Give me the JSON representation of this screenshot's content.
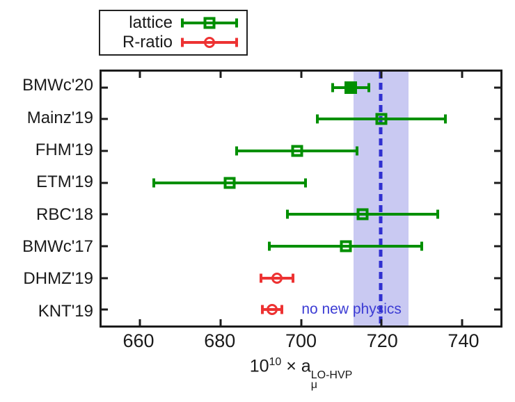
{
  "figure": {
    "background": "#ffffff"
  },
  "chart_data": {
    "type": "scatter",
    "subtype": "horizontal-errorbar-comparison",
    "title": "",
    "xlabel": "10^10 × a_mu^LO-HVP",
    "xlabel_parts": {
      "coeff": "10",
      "exponent": "10",
      "times": " × a",
      "subscript": "μ",
      "superscript": "LO-HVP"
    },
    "xlim": [
      650.4,
      749.6
    ],
    "x_ticks": [
      "660",
      "680",
      "700",
      "720",
      "740"
    ],
    "grid": false,
    "legend_position": "top-left-outside",
    "legend": {
      "items": [
        {
          "label": "lattice",
          "group": "lattice",
          "marker": "open-square"
        },
        {
          "label": "R-ratio",
          "group": "rratio",
          "marker": "open-circle"
        }
      ]
    },
    "categories": [
      "BMWc'20",
      "Mainz'19",
      "FHM'19",
      "ETM'19",
      "RBC'18",
      "BMWc'17",
      "DHMZ'19",
      "KNT'19"
    ],
    "points": [
      {
        "label": "BMWc'20",
        "value": 712.4,
        "lo": 707.9,
        "hi": 716.9,
        "group": "lattice",
        "marker": "filled-square"
      },
      {
        "label": "Mainz'19",
        "value": 720.0,
        "lo": 704.1,
        "hi": 735.9,
        "group": "lattice",
        "marker": "open-square"
      },
      {
        "label": "FHM'19",
        "value": 699.0,
        "lo": 684.0,
        "hi": 714.0,
        "group": "lattice",
        "marker": "open-square"
      },
      {
        "label": "ETM'19",
        "value": 682.3,
        "lo": 663.4,
        "hi": 701.2,
        "group": "lattice",
        "marker": "open-square"
      },
      {
        "label": "RBC'18",
        "value": 715.4,
        "lo": 696.7,
        "hi": 734.1,
        "group": "lattice",
        "marker": "open-square"
      },
      {
        "label": "BMWc'17",
        "value": 711.1,
        "lo": 692.2,
        "hi": 730.0,
        "group": "lattice",
        "marker": "open-square"
      },
      {
        "label": "DHMZ'19",
        "value": 694.0,
        "lo": 690.0,
        "hi": 698.0,
        "group": "rratio",
        "marker": "open-circle"
      },
      {
        "label": "KNT'19",
        "value": 692.8,
        "lo": 690.4,
        "hi": 695.2,
        "group": "rratio",
        "marker": "open-circle"
      }
    ],
    "band": {
      "lo": 713.0,
      "hi": 726.7,
      "line": 719.9,
      "band_color": "#c9c9f2",
      "line_color": "#3030d0"
    },
    "annotation": {
      "text": "no new physics",
      "color": "#3c3cd4"
    },
    "colors": {
      "lattice": "#008f00",
      "rratio": "#ed3232",
      "frame": "#1c1c1c",
      "text": "#1a1a1a"
    }
  }
}
